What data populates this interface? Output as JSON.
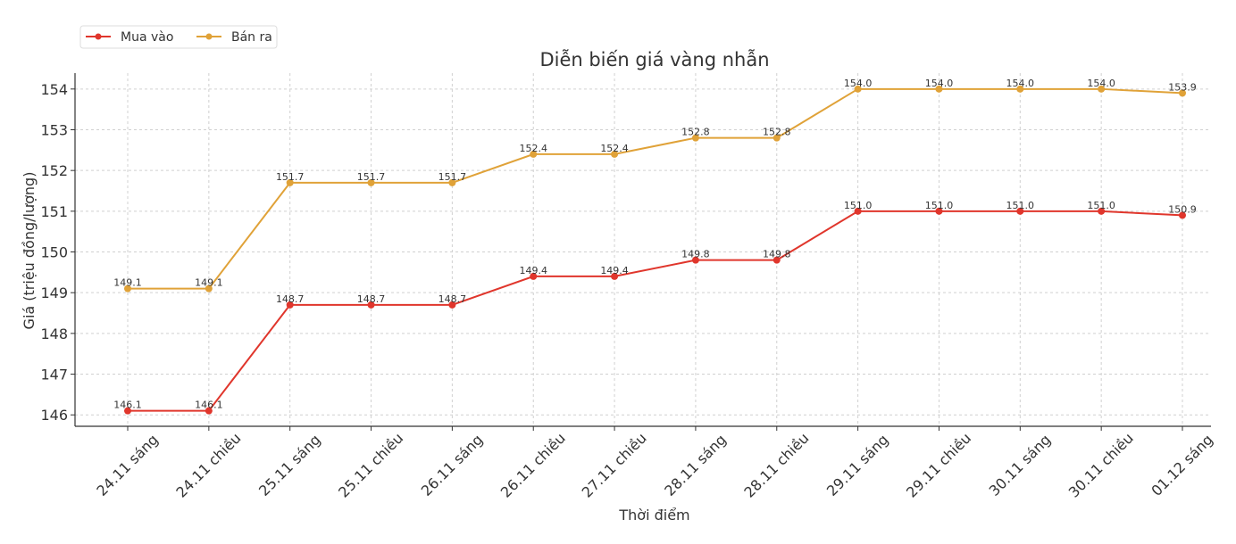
{
  "chart_data": {
    "type": "line",
    "title": "Diễn biến giá vàng nhẫn",
    "xlabel": "Thời điểm",
    "ylabel": "Giá (triệu đồng/lượng)",
    "categories": [
      "24.11 sáng",
      "24.11 chiều",
      "25.11 sáng",
      "25.11 chiều",
      "26.11 sáng",
      "26.11 chiều",
      "27.11 chiều",
      "28.11 sáng",
      "28.11 chiều",
      "29.11 sáng",
      "29.11 chiều",
      "30.11 sáng",
      "30.11 chiều",
      "01.12 sáng"
    ],
    "series": [
      {
        "name": "Mua vào",
        "color": "#e0362c",
        "values": [
          146.1,
          146.1,
          148.7,
          148.7,
          148.7,
          149.4,
          149.4,
          149.8,
          149.8,
          151.0,
          151.0,
          151.0,
          151.0,
          150.9
        ]
      },
      {
        "name": "Bán ra",
        "color": "#e0a238",
        "values": [
          149.1,
          149.1,
          151.7,
          151.7,
          151.7,
          152.4,
          152.4,
          152.8,
          152.8,
          154.0,
          154.0,
          154.0,
          154.0,
          153.9
        ]
      }
    ],
    "yticks": [
      146,
      147,
      148,
      149,
      150,
      151,
      152,
      153,
      154
    ],
    "ylim": [
      145.72,
      154.39
    ],
    "grid": true,
    "legend_position": "top-left"
  }
}
